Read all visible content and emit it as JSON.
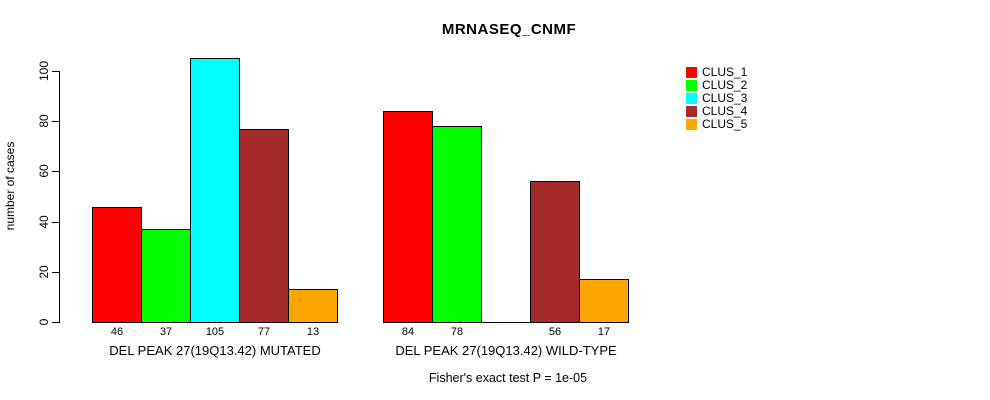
{
  "page": {
    "background_color": "#FFFFFF",
    "text_color": "#000000"
  },
  "chart_data": {
    "type": "bar",
    "title": "MRNASEQ_CNMF",
    "xlabel": "",
    "ylabel": "number of cases",
    "ylim": [
      0,
      105
    ],
    "yticks": [
      0,
      20,
      40,
      60,
      80,
      100
    ],
    "grid": false,
    "legend_position": "right",
    "series": [
      {
        "name": "CLUS_1",
        "color": "#FF0000"
      },
      {
        "name": "CLUS_2",
        "color": "#00FF00"
      },
      {
        "name": "CLUS_3",
        "color": "#00FFFF"
      },
      {
        "name": "CLUS_4",
        "color": "#A52A2A"
      },
      {
        "name": "CLUS_5",
        "color": "#FFA500"
      }
    ],
    "groups": [
      {
        "label": "DEL PEAK 27(19Q13.42) MUTATED",
        "values": [
          46,
          37,
          105,
          77,
          13
        ],
        "bar_labels": [
          "46",
          "37",
          "105",
          "77",
          "13"
        ]
      },
      {
        "label": "DEL PEAK 27(19Q13.42) WILD-TYPE",
        "values": [
          84,
          78,
          0,
          56,
          17
        ],
        "bar_labels": [
          "84",
          "78",
          "",
          "56",
          "17"
        ]
      }
    ],
    "annotation": "Fisher's exact test P = 1e-05"
  }
}
